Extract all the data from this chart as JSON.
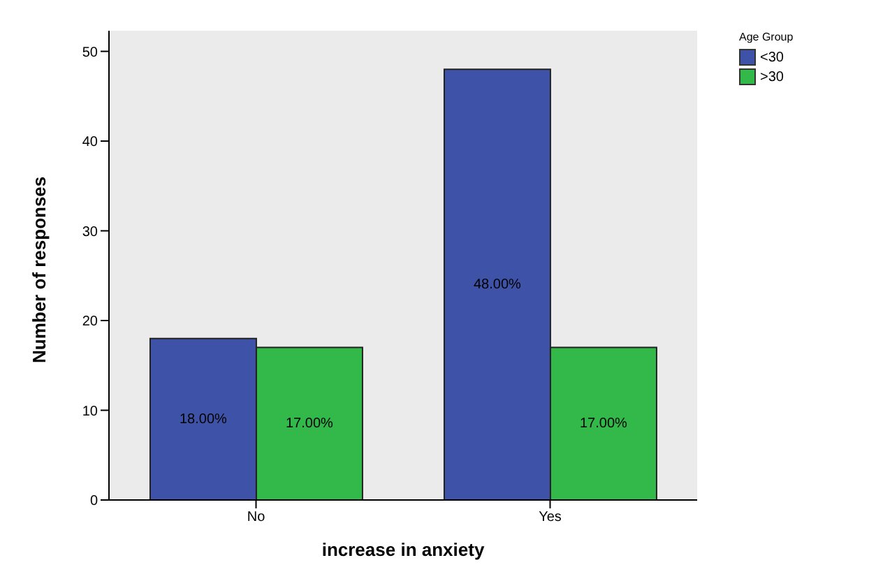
{
  "chart_data": {
    "type": "bar",
    "xlabel": "increase in anxiety",
    "ylabel": "Number of responses",
    "legend_title": "Age Group",
    "categories": [
      "No",
      "Yes"
    ],
    "series": [
      {
        "name": "<30",
        "color": "#3e53a7",
        "values": [
          18,
          48
        ],
        "value_labels": [
          "18.00%",
          "48.00%"
        ]
      },
      {
        "name": ">30",
        "color": "#33b94a",
        "values": [
          17,
          17
        ],
        "value_labels": [
          "17.00%",
          "17.00%"
        ]
      }
    ],
    "ylim": [
      0,
      52.3
    ],
    "yticks": [
      0,
      10,
      20,
      30,
      40,
      50
    ],
    "legend": "top right"
  }
}
